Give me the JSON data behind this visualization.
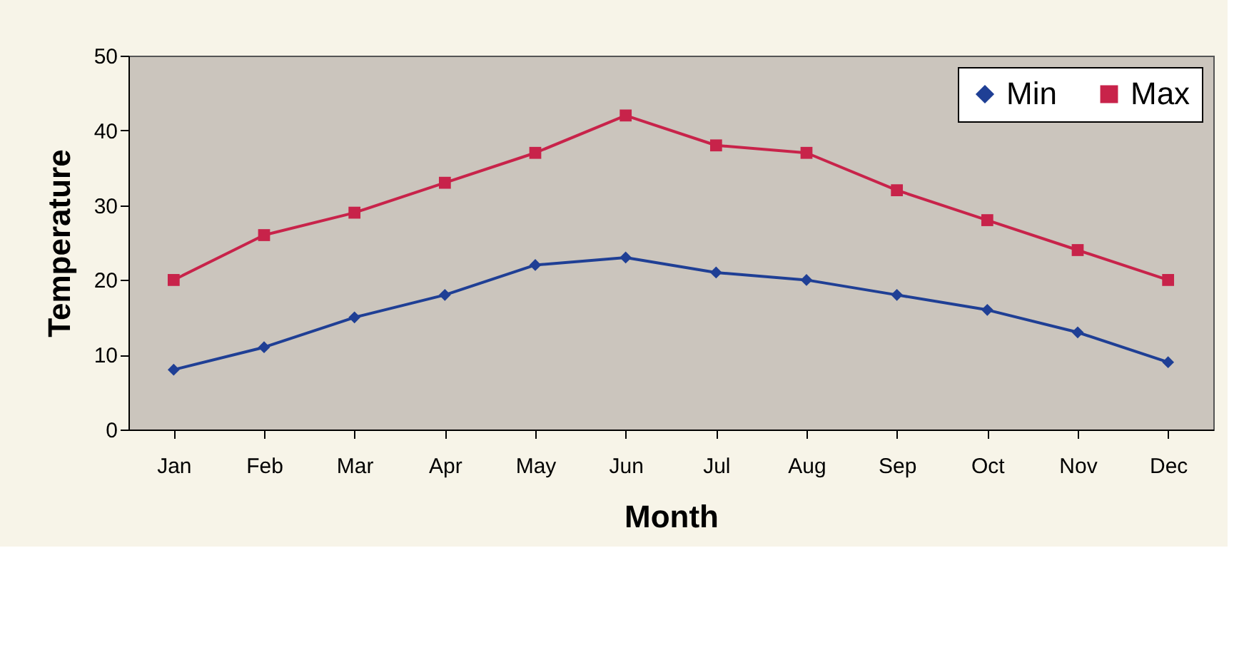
{
  "chart_data": {
    "type": "line",
    "xlabel": "Month",
    "ylabel": "Temperature",
    "categories": [
      "Jan",
      "Feb",
      "Mar",
      "Apr",
      "May",
      "Jun",
      "Jul",
      "Aug",
      "Sep",
      "Oct",
      "Nov",
      "Dec"
    ],
    "series": [
      {
        "name": "Min",
        "color": "#1f3f95",
        "marker": "diamond",
        "values": [
          8,
          11,
          15,
          18,
          22,
          23,
          21,
          20,
          18,
          16,
          13,
          9
        ]
      },
      {
        "name": "Max",
        "color": "#c8234a",
        "marker": "square",
        "values": [
          20,
          26,
          29,
          33,
          37,
          42,
          38,
          37,
          32,
          28,
          24,
          20
        ]
      }
    ],
    "ylim": [
      0,
      50
    ],
    "yticks": [
      0,
      10,
      20,
      30,
      40,
      50
    ],
    "grid": false,
    "legend": "top right",
    "line_style": "solid"
  }
}
